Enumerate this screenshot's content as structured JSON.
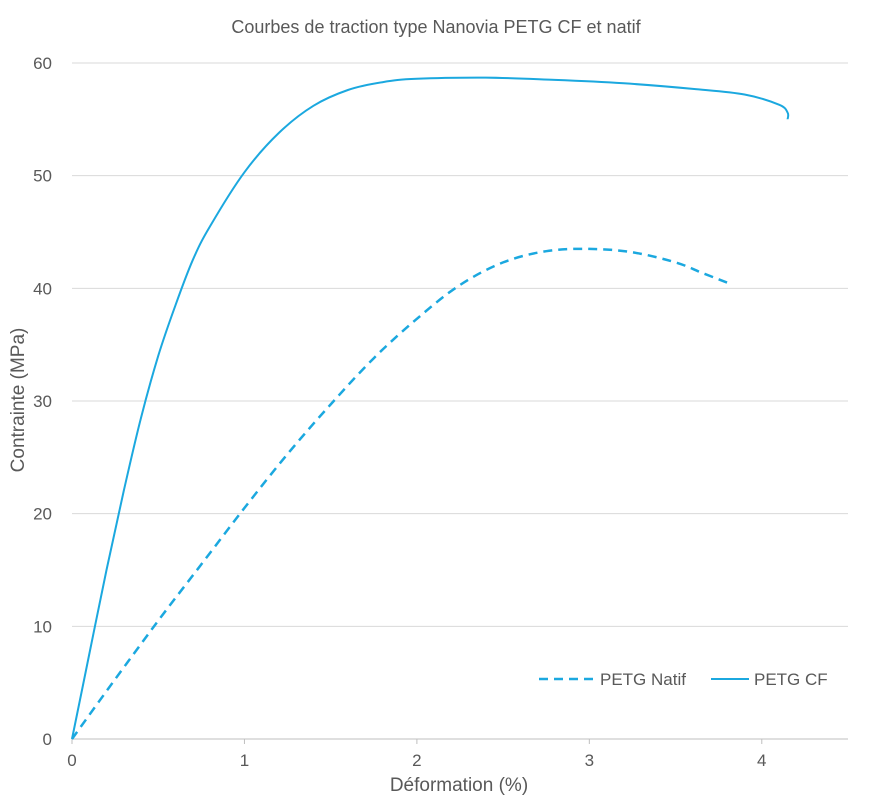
{
  "chart_data": {
    "type": "line",
    "title": "Courbes de traction type Nanovia PETG CF et natif",
    "xlabel": "Déformation (%)",
    "ylabel": "Contrainte (MPa)",
    "xlim": [
      0,
      4.5
    ],
    "ylim": [
      0,
      60
    ],
    "xticks": [
      0,
      1,
      2,
      3,
      4
    ],
    "yticks": [
      0,
      10,
      20,
      30,
      40,
      50,
      60
    ],
    "grid": true,
    "legend_position": "bottom-right",
    "series": [
      {
        "name": "PETG Natif",
        "color": "#1ba8df",
        "dash": "dashed",
        "x": [
          0,
          0.25,
          0.5,
          0.75,
          1.0,
          1.25,
          1.5,
          1.75,
          2.0,
          2.25,
          2.5,
          2.75,
          3.0,
          3.25,
          3.5,
          3.65,
          3.8
        ],
        "y": [
          0,
          5.3,
          10.5,
          15.5,
          20.5,
          25.3,
          29.7,
          33.8,
          37.3,
          40.3,
          42.3,
          43.3,
          43.5,
          43.2,
          42.3,
          41.4,
          40.5
        ]
      },
      {
        "name": "PETG CF",
        "color": "#1ba8df",
        "dash": "solid",
        "x": [
          0,
          0.1,
          0.2,
          0.3,
          0.4,
          0.5,
          0.6,
          0.7,
          0.8,
          1.0,
          1.2,
          1.4,
          1.6,
          1.8,
          2.0,
          2.4,
          2.8,
          3.2,
          3.6,
          3.9,
          4.1,
          4.15,
          4.15
        ],
        "y": [
          0,
          7.5,
          15,
          22,
          28.5,
          34,
          38.5,
          42.5,
          45.5,
          50.3,
          53.8,
          56.2,
          57.6,
          58.3,
          58.6,
          58.7,
          58.5,
          58.2,
          57.7,
          57.2,
          56.3,
          55.6,
          55
        ]
      }
    ]
  }
}
